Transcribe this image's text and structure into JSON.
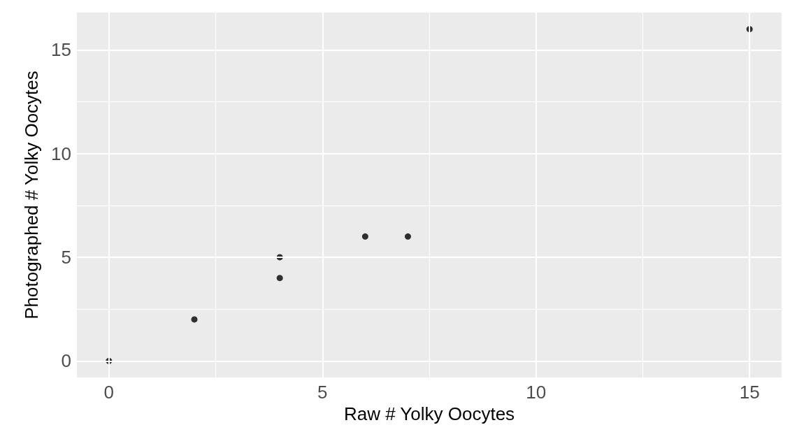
{
  "chart_data": {
    "type": "scatter",
    "xlabel": "Raw # Yolky Oocytes",
    "ylabel": "Photographed # Yolky Oocytes",
    "x": [
      0,
      2,
      4,
      4,
      6,
      7,
      15
    ],
    "values": [
      0,
      2,
      5,
      4,
      6,
      6,
      16
    ],
    "color": "#000000",
    "marker": "circle",
    "grid": true,
    "xlim": [
      -0.75,
      15.75
    ],
    "xticks": [
      0,
      {
        "value": 2.5,
        "label": null
      },
      5,
      {
        "value": 7.5,
        "label": null
      },
      10,
      {
        "value": 12.5,
        "label": null
      },
      15
    ],
    "ylim": [
      -0.8,
      16.8
    ],
    "yticks": [
      0,
      {
        "value": 2.5,
        "label": null
      },
      5,
      {
        "value": 7.5,
        "label": null
      },
      10,
      {
        "value": 12.5,
        "label": null
      },
      15
    ]
  }
}
